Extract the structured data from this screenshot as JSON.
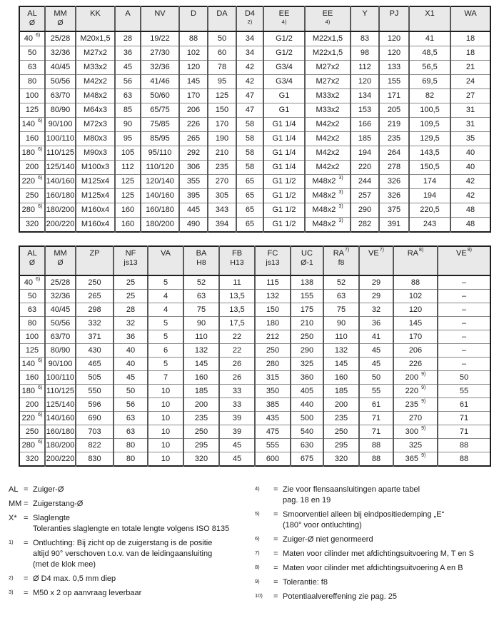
{
  "colors": {
    "table_outer_border": "#1f1f1f",
    "column_line": "#5a5a5a",
    "row_line": "#8a8a8a",
    "header_bg": "#e9e9e9",
    "text": "#1a1a1a",
    "page_bg": "#ffffff"
  },
  "tables": [
    {
      "name": "main-dimensions-table",
      "columns": [
        {
          "label": "AL",
          "sub": "Ø"
        },
        {
          "label": "MM",
          "sub": "Ø"
        },
        {
          "label": "KK"
        },
        {
          "label": "A"
        },
        {
          "label": "NV"
        },
        {
          "label": "D"
        },
        {
          "label": "DA"
        },
        {
          "label": "D4",
          "subsmall": "2)"
        },
        {
          "label": "EE",
          "subsmall": "4)"
        },
        {
          "label": "EE",
          "subsmall": "4)"
        },
        {
          "label": "Y"
        },
        {
          "label": "PJ"
        },
        {
          "label": "X1"
        },
        {
          "label": "WA"
        }
      ],
      "rows": [
        [
          "40^6)",
          "25/28",
          "M20x1,5",
          "28",
          "19/22",
          "88",
          "50",
          "34",
          "G1/2",
          "M22x1,5",
          "83",
          "120",
          "41",
          "18"
        ],
        [
          "50",
          "32/36",
          "M27x2",
          "36",
          "27/30",
          "102",
          "60",
          "34",
          "G1/2",
          "M22x1,5",
          "98",
          "120",
          "48,5",
          "18"
        ],
        [
          "63",
          "40/45",
          "M33x2",
          "45",
          "32/36",
          "120",
          "78",
          "42",
          "G3/4",
          "M27x2",
          "112",
          "133",
          "56,5",
          "21"
        ],
        [
          "80",
          "50/56",
          "M42x2",
          "56",
          "41/46",
          "145",
          "95",
          "42",
          "G3/4",
          "M27x2",
          "120",
          "155",
          "69,5",
          "24"
        ],
        [
          "100",
          "63/70",
          "M48x2",
          "63",
          "50/60",
          "170",
          "125",
          "47",
          "G1",
          "M33x2",
          "134",
          "171",
          "82",
          "27"
        ],
        [
          "125",
          "80/90",
          "M64x3",
          "85",
          "65/75",
          "206",
          "150",
          "47",
          "G1",
          "M33x2",
          "153",
          "205",
          "100,5",
          "31"
        ],
        [
          "140^6)",
          "90/100",
          "M72x3",
          "90",
          "75/85",
          "226",
          "170",
          "58",
          "G1 1/4",
          "M42x2",
          "166",
          "219",
          "109,5",
          "31"
        ],
        [
          "160",
          "100/110",
          "M80x3",
          "95",
          "85/95",
          "265",
          "190",
          "58",
          "G1 1/4",
          "M42x2",
          "185",
          "235",
          "129,5",
          "35"
        ],
        [
          "180^6)",
          "110/125",
          "M90x3",
          "105",
          "95/110",
          "292",
          "210",
          "58",
          "G1 1/4",
          "M42x2",
          "194",
          "264",
          "143,5",
          "40"
        ],
        [
          "200",
          "125/140",
          "M100x3",
          "112",
          "110/120",
          "306",
          "235",
          "58",
          "G1 1/4",
          "M42x2",
          "220",
          "278",
          "150,5",
          "40"
        ],
        [
          "220^6)",
          "140/160",
          "M125x4",
          "125",
          "120/140",
          "355",
          "270",
          "65",
          "G1 1/2",
          "M48x2^3)",
          "244",
          "326",
          "174",
          "42"
        ],
        [
          "250",
          "160/180",
          "M125x4",
          "125",
          "140/160",
          "395",
          "305",
          "65",
          "G1 1/2",
          "M48x2^3)",
          "257",
          "326",
          "194",
          "42"
        ],
        [
          "280^6)",
          "180/200",
          "M160x4",
          "160",
          "160/180",
          "445",
          "343",
          "65",
          "G1 1/2",
          "M48x2^3)",
          "290",
          "375",
          "220,5",
          "48"
        ],
        [
          "320",
          "200/220",
          "M160x4",
          "160",
          "180/200",
          "490",
          "394",
          "65",
          "G1 1/2",
          "M48x2^3)",
          "282",
          "391",
          "243",
          "48"
        ]
      ]
    },
    {
      "name": "mounting-dimensions-table",
      "columns": [
        {
          "label": "AL",
          "sub": "Ø"
        },
        {
          "label": "MM",
          "sub": "Ø"
        },
        {
          "label": "ZP"
        },
        {
          "label": "NF",
          "sub": "js13"
        },
        {
          "label": "VA"
        },
        {
          "label": "BA",
          "sub": "H8"
        },
        {
          "label": "FB",
          "sub": "H13"
        },
        {
          "label": "FC",
          "sub": "js13"
        },
        {
          "label": "UC",
          "sub": "Ø-1"
        },
        {
          "label": "RA",
          "sup": "7)",
          "sub": "f8"
        },
        {
          "label": "VE",
          "sup": "7)"
        },
        {
          "label": "RA",
          "sup": "8)"
        },
        {
          "label": "VE",
          "sup": "8)"
        }
      ],
      "rows": [
        [
          "40^6)",
          "25/28",
          "250",
          "25",
          "5",
          "52",
          "11",
          "115",
          "138",
          "52",
          "29",
          "88",
          "–"
        ],
        [
          "50",
          "32/36",
          "265",
          "25",
          "4",
          "63",
          "13,5",
          "132",
          "155",
          "63",
          "29",
          "102",
          "–"
        ],
        [
          "63",
          "40/45",
          "298",
          "28",
          "4",
          "75",
          "13,5",
          "150",
          "175",
          "75",
          "32",
          "120",
          "–"
        ],
        [
          "80",
          "50/56",
          "332",
          "32",
          "5",
          "90",
          "17,5",
          "180",
          "210",
          "90",
          "36",
          "145",
          "–"
        ],
        [
          "100",
          "63/70",
          "371",
          "36",
          "5",
          "110",
          "22",
          "212",
          "250",
          "110",
          "41",
          "170",
          "–"
        ],
        [
          "125",
          "80/90",
          "430",
          "40",
          "6",
          "132",
          "22",
          "250",
          "290",
          "132",
          "45",
          "206",
          "–"
        ],
        [
          "140^6)",
          "90/100",
          "465",
          "40",
          "5",
          "145",
          "26",
          "280",
          "325",
          "145",
          "45",
          "226",
          "–"
        ],
        [
          "160",
          "100/110",
          "505",
          "45",
          "7",
          "160",
          "26",
          "315",
          "360",
          "160",
          "50",
          "200^9)",
          "50"
        ],
        [
          "180^6)",
          "110/125",
          "550",
          "50",
          "10",
          "185",
          "33",
          "350",
          "405",
          "185",
          "55",
          "220^9)",
          "55"
        ],
        [
          "200",
          "125/140",
          "596",
          "56",
          "10",
          "200",
          "33",
          "385",
          "440",
          "200",
          "61",
          "235^9)",
          "61"
        ],
        [
          "220^6)",
          "140/160",
          "690",
          "63",
          "10",
          "235",
          "39",
          "435",
          "500",
          "235",
          "71",
          "270",
          "71"
        ],
        [
          "250",
          "160/180",
          "703",
          "63",
          "10",
          "250",
          "39",
          "475",
          "540",
          "250",
          "71",
          "300^9)",
          "71"
        ],
        [
          "280^6)",
          "180/200",
          "822",
          "80",
          "10",
          "295",
          "45",
          "555",
          "630",
          "295",
          "88",
          "325",
          "88"
        ],
        [
          "320",
          "200/220",
          "830",
          "80",
          "10",
          "320",
          "45",
          "600",
          "675",
          "320",
          "88",
          "365^9)",
          "88"
        ]
      ]
    }
  ],
  "footnotes": {
    "left": [
      {
        "term": "AL",
        "raised": false,
        "lines": [
          "Zuiger-Ø"
        ]
      },
      {
        "term": "MM",
        "raised": false,
        "lines": [
          "Zuigerstang-Ø"
        ]
      },
      {
        "term": "X*",
        "raised": false,
        "lines": [
          "Slaglengte",
          "Toleranties slaglengte en totale lengte volgens ISO 8135"
        ]
      },
      {
        "term": "1)",
        "raised": true,
        "lines": [
          "Ontluchting: Bij zicht op de zuigerstang is de positie",
          "altijd 90° verschoven t.o.v. van de leidingaansluiting",
          "(met de klok mee)"
        ]
      },
      {
        "term": "2)",
        "raised": true,
        "lines": [
          "Ø D4 max. 0,5 mm diep"
        ]
      },
      {
        "term": "3)",
        "raised": true,
        "lines": [
          "M50 x 2 op aanvraag leverbaar"
        ]
      }
    ],
    "right": [
      {
        "term": "4)",
        "raised": true,
        "lines": [
          "Zie voor flensaansluitingen aparte tabel",
          "pag. 18 en 19"
        ]
      },
      {
        "term": "5)",
        "raised": true,
        "lines": [
          "Smoorventiel alleen bij eindpositiedemping „E“",
          "(180° voor ontluchting)"
        ]
      },
      {
        "term": "6)",
        "raised": true,
        "lines": [
          "Zuiger-Ø niet genormeerd"
        ]
      },
      {
        "term": "7)",
        "raised": true,
        "lines": [
          "Maten voor cilinder met afdichtingsuitvoering M, T en S"
        ]
      },
      {
        "term": "8)",
        "raised": true,
        "lines": [
          "Maten voor cilinder met afdichtingsuitvoering A en B"
        ]
      },
      {
        "term": "9)",
        "raised": true,
        "lines": [
          "Tolerantie: f8"
        ]
      },
      {
        "term": "10)",
        "raised": true,
        "lines": [
          "Potentiaalvereffening zie pag. 25"
        ]
      }
    ]
  }
}
